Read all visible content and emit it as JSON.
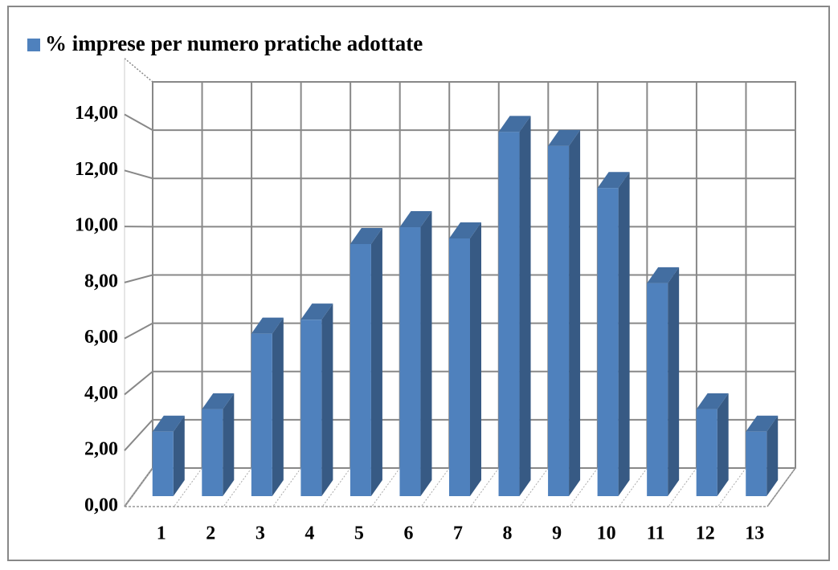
{
  "chart_data": {
    "type": "bar3d",
    "categories": [
      "1",
      "2",
      "3",
      "4",
      "5",
      "6",
      "7",
      "8",
      "9",
      "10",
      "11",
      "12",
      "13"
    ],
    "series": [
      {
        "name": "% imprese per numero pratiche adottate",
        "color": "#4f81bd",
        "values": [
          2.3,
          3.1,
          5.8,
          6.3,
          9.0,
          9.6,
          9.2,
          13.0,
          12.5,
          11.0,
          7.6,
          3.1,
          2.3
        ]
      }
    ],
    "ylim": [
      0,
      16
    ],
    "yticks": [
      {
        "value": 0,
        "label": "0,00"
      },
      {
        "value": 2,
        "label": "2,00"
      },
      {
        "value": 4,
        "label": "4,00"
      },
      {
        "value": 6,
        "label": "6,00"
      },
      {
        "value": 8,
        "label": "8,00"
      },
      {
        "value": 10,
        "label": "10,00"
      },
      {
        "value": 12,
        "label": "12,00"
      },
      {
        "value": 14,
        "label": "14,00"
      }
    ],
    "grid": true,
    "legend": "top-left"
  }
}
